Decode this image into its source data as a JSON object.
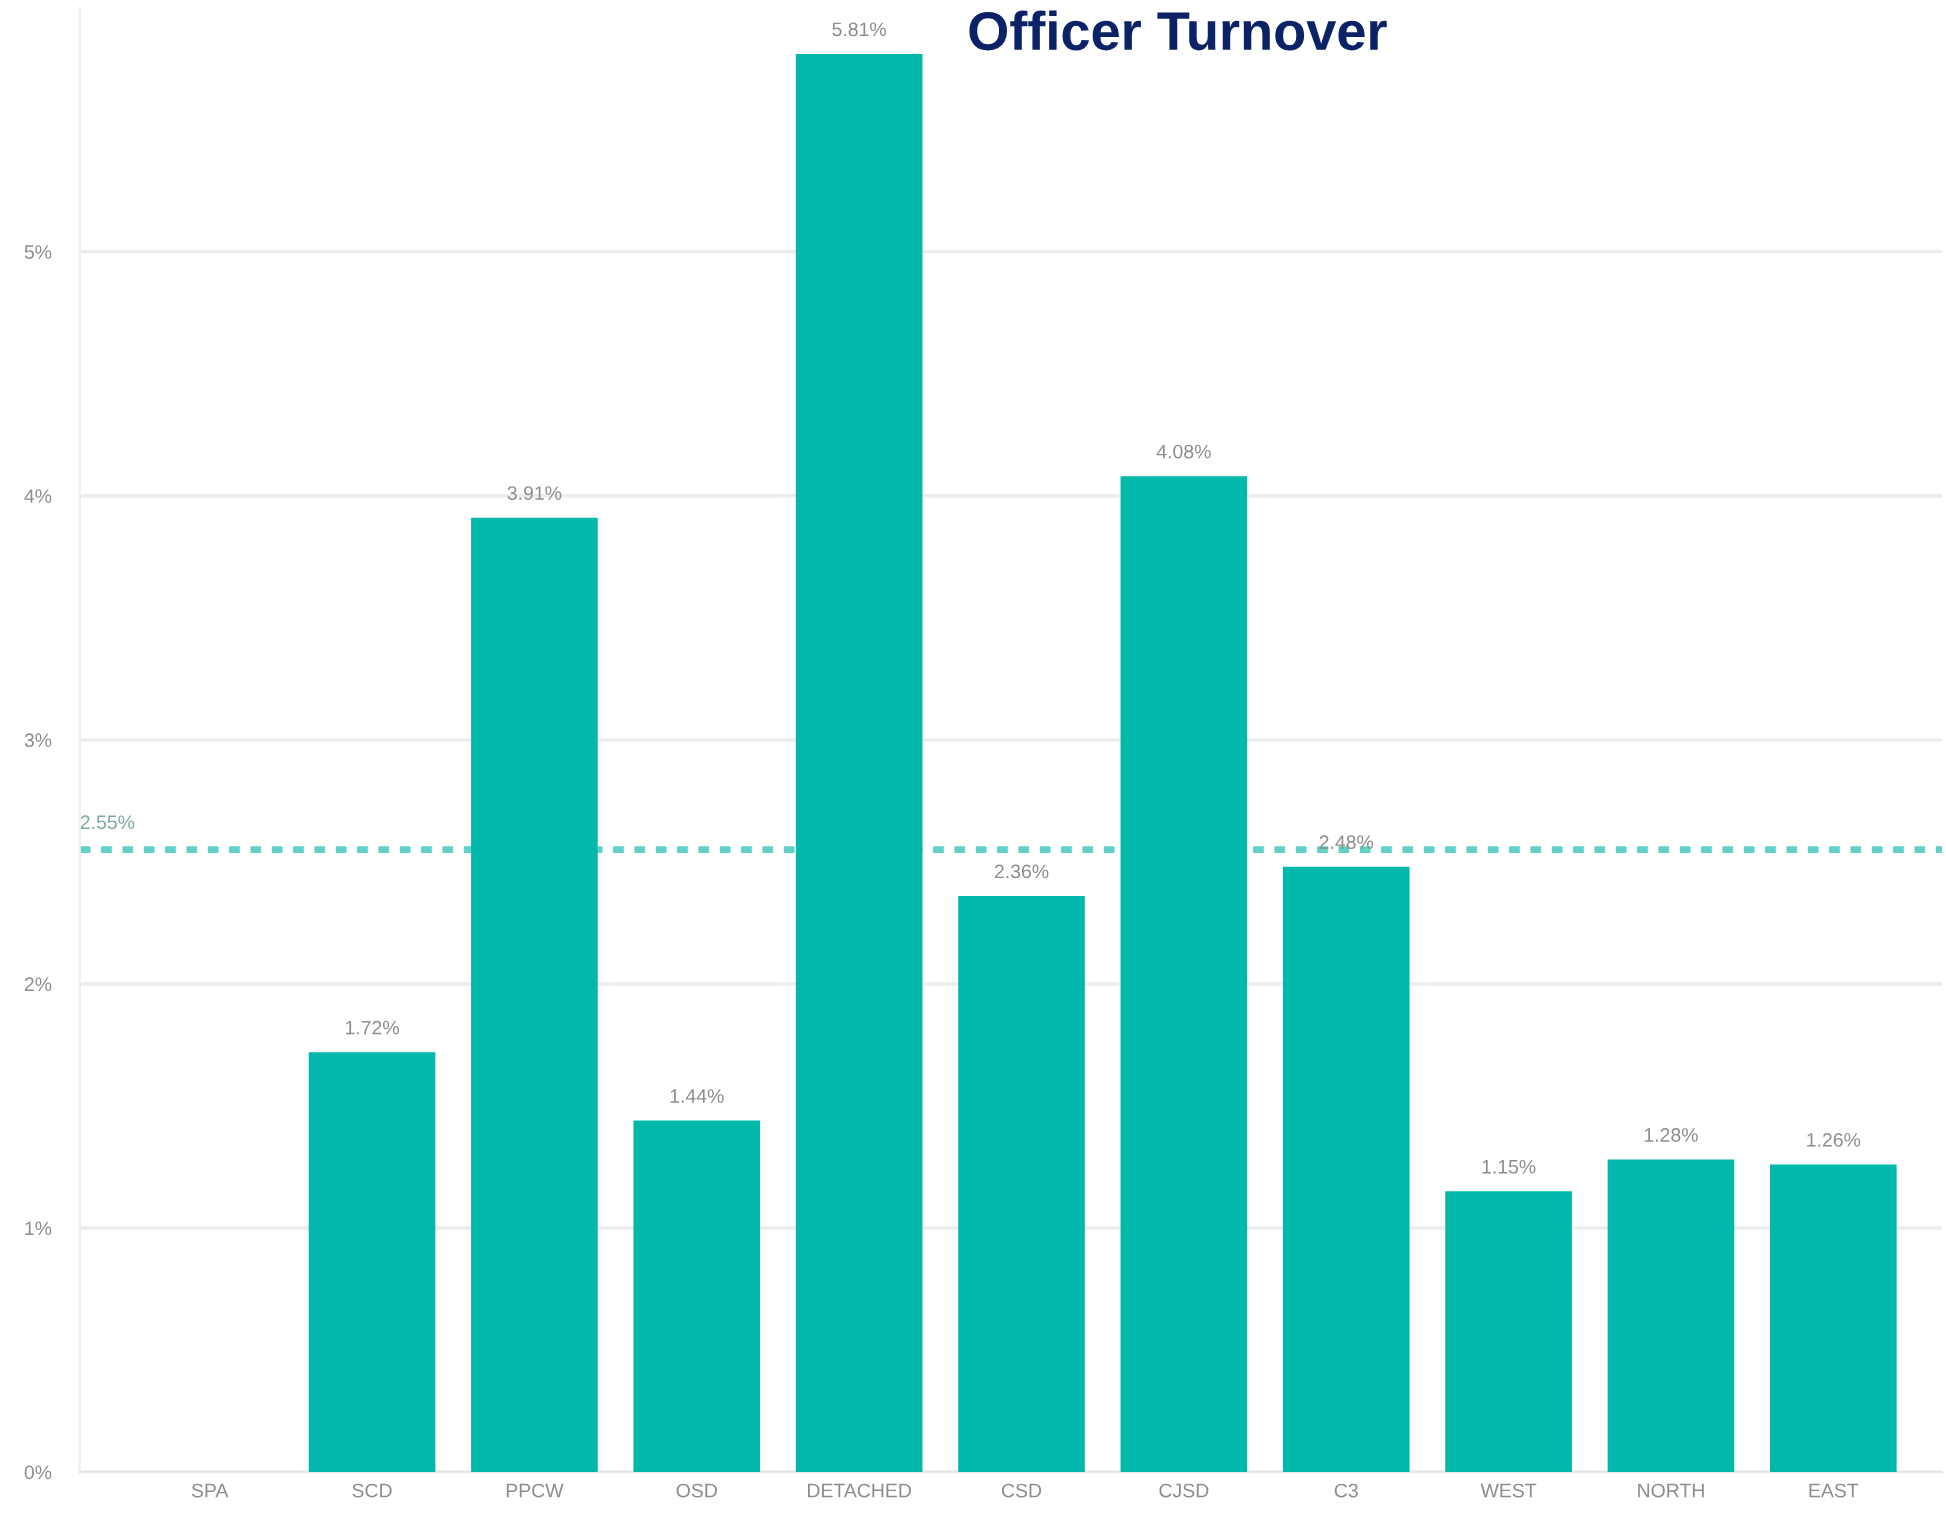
{
  "chart_data": {
    "type": "bar",
    "title": "Officer Turnover",
    "categories": [
      "SPA",
      "SCD",
      "PPCW",
      "OSD",
      "DETACHED",
      "CSD",
      "CJSD",
      "C3",
      "WEST",
      "NORTH",
      "EAST"
    ],
    "values": [
      null,
      1.72,
      3.91,
      1.44,
      5.81,
      2.36,
      4.08,
      2.48,
      1.15,
      1.28,
      1.26
    ],
    "value_labels": [
      null,
      "1.72%",
      "3.91%",
      "1.44%",
      "5.81%",
      "2.36%",
      "4.08%",
      "2.48%",
      "1.15%",
      "1.28%",
      "1.26%"
    ],
    "color": "#01b8aa",
    "ylim": [
      0,
      6
    ],
    "yticks": [
      {
        "value": 0,
        "label": "0%"
      },
      {
        "value": 1,
        "label": "1%"
      },
      {
        "value": 2,
        "label": "2%"
      },
      {
        "value": 3,
        "label": "3%"
      },
      {
        "value": 4,
        "label": "4%"
      },
      {
        "value": 5,
        "label": "5%"
      }
    ],
    "ref_lines": [
      {
        "axis": "y",
        "value": 2.55,
        "label": "2.55%",
        "color": "#5fd1c6",
        "line_style": "dashed"
      }
    ],
    "grid": "y"
  }
}
